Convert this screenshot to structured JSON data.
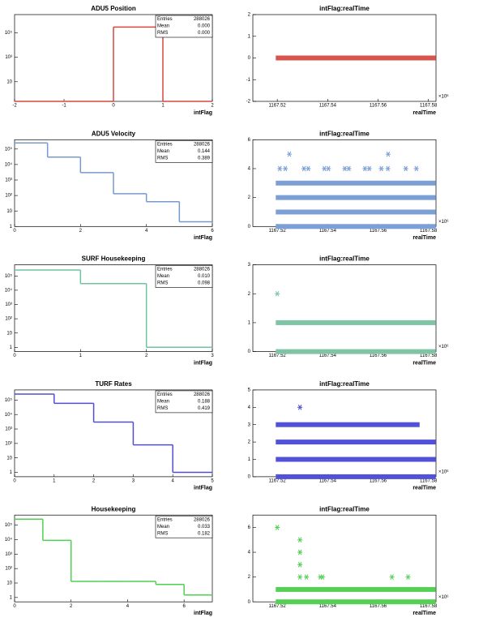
{
  "chart_data": [
    {
      "type": "histogram",
      "title": "ADU5 Position",
      "xlabel": "intFlag",
      "color": "#d9463f",
      "log_y": true,
      "bins": [
        -2,
        -1,
        0,
        1,
        2
      ],
      "counts": [
        0,
        0,
        288026,
        0
      ],
      "xlim": [
        -2,
        2
      ],
      "xticks": [
        -2,
        -1,
        0,
        1,
        2
      ],
      "ylim": [
        0.25,
        3000000
      ],
      "yticks": [
        10,
        {
          "value": 1000,
          "label": "10³"
        },
        {
          "value": 100000,
          "label": "10⁵"
        }
      ],
      "stats": [
        [
          "Entries",
          "288026"
        ],
        [
          "Mean",
          "0.000"
        ],
        [
          "RMS",
          "0.000"
        ]
      ]
    },
    {
      "type": "scatter",
      "title": "intFlag:realTime",
      "xlabel": "realTime",
      "x_exponent": "×10⁶",
      "color": "#d9544f",
      "xlim": [
        1167.5103,
        1167.583
      ],
      "xticks": [
        1167.52,
        1167.54,
        1167.56,
        1167.58
      ],
      "ylim": [
        -2,
        2
      ],
      "yticks": [
        -2,
        -1,
        0,
        1,
        2
      ],
      "rows": {
        "y": [
          0
        ],
        "x_start": [
          1167.5194
        ],
        "x_end": [
          1167.5829
        ]
      },
      "points": {
        "x": [],
        "y": []
      }
    },
    {
      "type": "histogram",
      "title": "ADU5 Velocity",
      "xlabel": "intFlag",
      "color": "#7799cc",
      "log_y": true,
      "bins": [
        0,
        1,
        2,
        3,
        4,
        5,
        6
      ],
      "counts": [
        250000,
        30000,
        3000,
        130,
        40,
        2
      ],
      "xlim": [
        0,
        6
      ],
      "xticks": [
        0,
        2,
        4,
        6
      ],
      "ylim": [
        1,
        400000
      ],
      "yticks": [
        1,
        10,
        {
          "value": 100,
          "label": "10²"
        },
        {
          "value": 1000,
          "label": "10³"
        },
        {
          "value": 10000,
          "label": "10⁴"
        },
        {
          "value": 100000,
          "label": "10⁵"
        }
      ],
      "stats": [
        [
          "Entries",
          "288026"
        ],
        [
          "Mean",
          "0.144"
        ],
        [
          "RMS",
          "0.389"
        ]
      ]
    },
    {
      "type": "scatter",
      "title": "intFlag:realTime",
      "xlabel": "realTime",
      "x_exponent": "×10⁶",
      "color": "#7c9fd6",
      "xlim": [
        1167.5103,
        1167.583
      ],
      "xticks": [
        1167.52,
        1167.54,
        1167.56,
        1167.58
      ],
      "ylim": [
        0,
        6
      ],
      "yticks": [
        0,
        2,
        4,
        6
      ],
      "rows": {
        "y": [
          0,
          1,
          2,
          3
        ],
        "x_start": [
          1167.5194,
          1167.5194,
          1167.5194,
          1167.5194
        ],
        "x_end": [
          1167.5829,
          1167.5829,
          1167.5829,
          1167.5829
        ]
      },
      "points": {
        "x": [
          1167.521,
          1167.5232,
          1167.5306,
          1167.5323,
          1167.5387,
          1167.5403,
          1167.5468,
          1167.5484,
          1167.5548,
          1167.5565,
          1167.5613,
          1167.5639,
          1167.571,
          1167.5752,
          1167.5248,
          1167.564
        ],
        "y": [
          4,
          4,
          4,
          4,
          4,
          4,
          4,
          4,
          4,
          4,
          4,
          4,
          4,
          4,
          5,
          5
        ]
      }
    },
    {
      "type": "histogram",
      "title": "SURF Housekeeping",
      "xlabel": "intFlag",
      "color": "#6fc49f",
      "log_y": true,
      "bins": [
        0,
        1,
        2,
        3
      ],
      "counts": [
        260000,
        29000,
        1
      ],
      "xlim": [
        0,
        3
      ],
      "xticks": [
        0,
        1,
        2,
        3
      ],
      "ylim": [
        0.5,
        600000
      ],
      "yticks": [
        1,
        10,
        {
          "value": 100,
          "label": "10²"
        },
        {
          "value": 1000,
          "label": "10³"
        },
        {
          "value": 10000,
          "label": "10⁴"
        },
        {
          "value": 100000,
          "label": "10⁵"
        }
      ],
      "stats": [
        [
          "Entries",
          "288026"
        ],
        [
          "Mean",
          "0.010"
        ],
        [
          "RMS",
          "0.098"
        ]
      ]
    },
    {
      "type": "scatter",
      "title": "intFlag:realTime",
      "xlabel": "realTime",
      "x_exponent": "×10⁶",
      "color": "#7fc4a5",
      "xlim": [
        1167.5103,
        1167.583
      ],
      "xticks": [
        1167.52,
        1167.54,
        1167.56,
        1167.58
      ],
      "ylim": [
        0,
        3
      ],
      "yticks": [
        0,
        1,
        2,
        3
      ],
      "rows": {
        "y": [
          0,
          1
        ],
        "x_start": [
          1167.5194,
          1167.5194
        ],
        "x_end": [
          1167.5829,
          1167.5829
        ]
      },
      "points": {
        "x": [
          1167.52
        ],
        "y": [
          2
        ]
      }
    },
    {
      "type": "histogram",
      "title": "TURF Rates",
      "xlabel": "intFlag",
      "color": "#4f4fd0",
      "log_y": true,
      "bins": [
        0,
        1,
        2,
        3,
        4,
        5
      ],
      "counts": [
        260000,
        60000,
        3000,
        80,
        1
      ],
      "xlim": [
        0,
        5
      ],
      "xticks": [
        0,
        1,
        2,
        3,
        4,
        5
      ],
      "ylim": [
        0.5,
        500000
      ],
      "yticks": [
        1,
        10,
        {
          "value": 100,
          "label": "10²"
        },
        {
          "value": 1000,
          "label": "10³"
        },
        {
          "value": 10000,
          "label": "10⁴"
        },
        {
          "value": 100000,
          "label": "10⁵"
        }
      ],
      "stats": [
        [
          "Entries",
          "288026"
        ],
        [
          "Mean",
          "0.188"
        ],
        [
          "RMS",
          "0.419"
        ]
      ]
    },
    {
      "type": "scatter",
      "title": "intFlag:realTime",
      "xlabel": "realTime",
      "x_exponent": "×10⁶",
      "color": "#5252d8",
      "xlim": [
        1167.5103,
        1167.583
      ],
      "xticks": [
        1167.52,
        1167.54,
        1167.56,
        1167.58
      ],
      "ylim": [
        0,
        5
      ],
      "yticks": [
        0,
        1,
        2,
        3,
        4,
        5
      ],
      "rows": {
        "y": [
          0,
          1,
          2,
          3
        ],
        "x_start": [
          1167.5194,
          1167.5194,
          1167.5194,
          1167.5194
        ],
        "x_end": [
          1167.5829,
          1167.5829,
          1167.5829,
          1167.5765
        ]
      },
      "points": {
        "x": [
          1167.529
        ],
        "y": [
          4
        ]
      }
    },
    {
      "type": "histogram",
      "title": "Housekeeping",
      "xlabel": "intFlag",
      "color": "#4fd04f",
      "log_y": true,
      "bins": [
        0,
        1,
        2,
        3,
        4,
        5,
        6,
        7
      ],
      "counts": [
        260000,
        9000,
        13,
        13,
        13,
        8,
        1.5
      ],
      "xlim": [
        0,
        7
      ],
      "xticks": [
        0,
        2,
        4,
        6
      ],
      "ylim": [
        0.5,
        500000
      ],
      "yticks": [
        1,
        10,
        {
          "value": 100,
          "label": "10²"
        },
        {
          "value": 1000,
          "label": "10³"
        },
        {
          "value": 10000,
          "label": "10⁴"
        },
        {
          "value": 100000,
          "label": "10⁵"
        }
      ],
      "stats": [
        [
          "Entries",
          "288026"
        ],
        [
          "Mean",
          "0.033"
        ],
        [
          "RMS",
          "0.182"
        ]
      ]
    },
    {
      "type": "scatter",
      "title": "intFlag:realTime",
      "xlabel": "realTime",
      "x_exponent": "×10⁶",
      "color": "#55d055",
      "xlim": [
        1167.5103,
        1167.583
      ],
      "xticks": [
        1167.52,
        1167.54,
        1167.56,
        1167.58
      ],
      "ylim": [
        0,
        7
      ],
      "yticks": [
        0,
        2,
        4,
        6
      ],
      "rows": {
        "y": [
          0,
          1
        ],
        "x_start": [
          1167.5194,
          1167.5194
        ],
        "x_end": [
          1167.5829,
          1167.5829
        ]
      },
      "points": {
        "x": [
          1167.52,
          1167.529,
          1167.529,
          1167.529,
          1167.529,
          1167.5316,
          1167.5371,
          1167.538,
          1167.5655,
          1167.5719
        ],
        "y": [
          6,
          5,
          4,
          3,
          2,
          2,
          2,
          2,
          2,
          2
        ]
      }
    }
  ]
}
